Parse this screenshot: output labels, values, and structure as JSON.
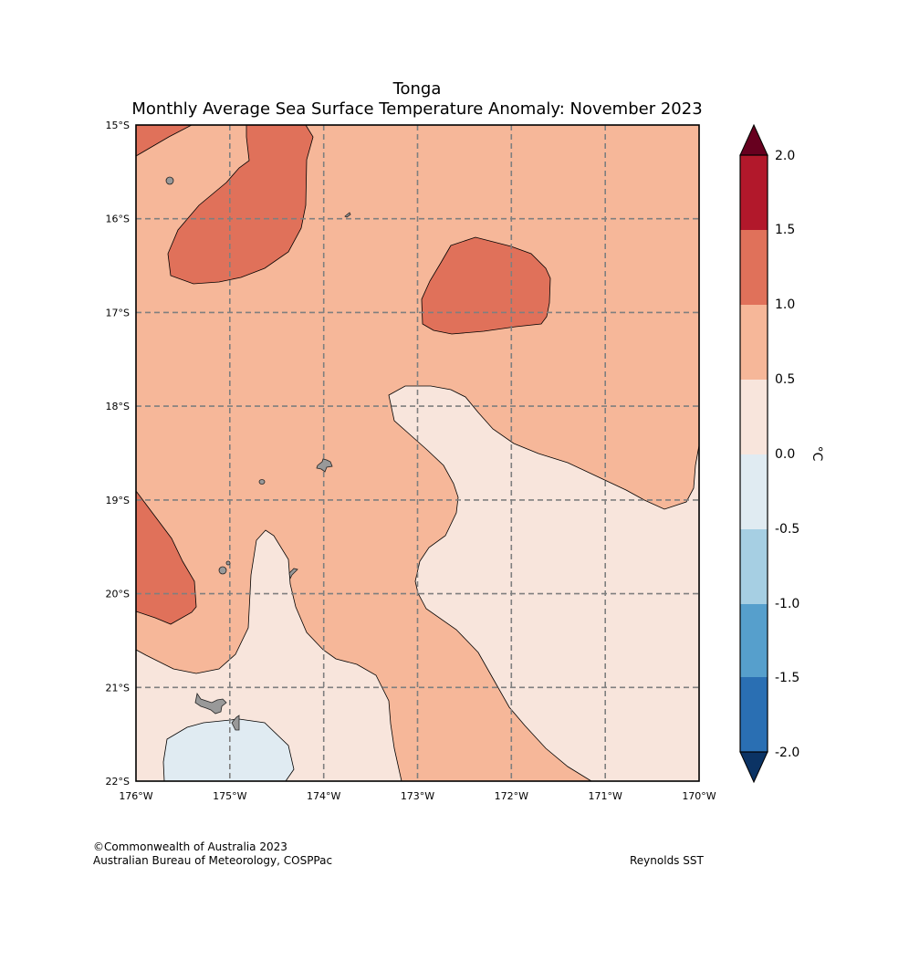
{
  "title": {
    "region": "Tonga",
    "subtitle": "Monthly Average Sea Surface Temperature Anomaly: November 2023"
  },
  "latitude_ticks": [
    "15°S",
    "16°S",
    "17°S",
    "18°S",
    "19°S",
    "20°S",
    "21°S",
    "22°S"
  ],
  "longitude_ticks": [
    "176°W",
    "175°W",
    "174°W",
    "173°W",
    "172°W",
    "171°W",
    "170°W"
  ],
  "colorbar": {
    "unit": "°C",
    "ticks": [
      "2.0",
      "1.5",
      "1.0",
      "0.5",
      "0.0",
      "-0.5",
      "-1.0",
      "-1.5",
      "-2.0"
    ],
    "bins": [
      {
        "range": "> 2.0",
        "color": "#67001f"
      },
      {
        "range": "1.5 to 2.0",
        "color": "#b2182b"
      },
      {
        "range": "1.0 to 1.5",
        "color": "#e0715a"
      },
      {
        "range": "0.5 to 1.0",
        "color": "#f6b799"
      },
      {
        "range": "0.0 to 0.5",
        "color": "#f8e5dc"
      },
      {
        "range": "-0.5 to 0.0",
        "color": "#e0ebf2"
      },
      {
        "range": "-1.0 to -0.5",
        "color": "#a6cfe3"
      },
      {
        "range": "-1.5 to -1.0",
        "color": "#569fcc"
      },
      {
        "range": "-2.0 to -1.5",
        "color": "#2a6fb3"
      },
      {
        "range": "< -2.0",
        "color": "#0b3364"
      }
    ]
  },
  "colors": {
    "land": "#999999",
    "gridline": "#7f7f7f"
  },
  "credits": {
    "line1": "©Commonwealth of Australia 2023",
    "line2": "Australian Bureau of Meteorology, COSPPac",
    "source": "Reynolds SST"
  }
}
